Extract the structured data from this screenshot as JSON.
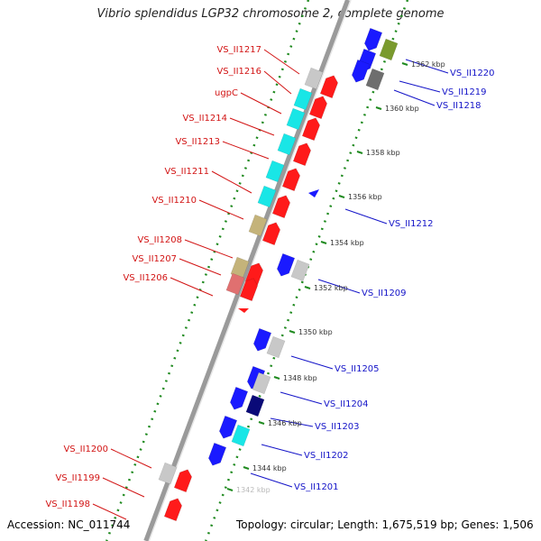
{
  "title": "Vibrio splendidus LGP32 chromosome 2, complete genome",
  "footer": {
    "accession": "Accession: NC_011744",
    "topology": "Topology: circular; Length: 1,675,519 bp; Genes: 1,506"
  },
  "colors": {
    "forward": "#ff1a1a",
    "reverse": "#1a1aff",
    "cyan": "#19e6e6",
    "gray": "#c8c8c8",
    "darkgray": "#6e6e6e",
    "olive": "#7a9a2e",
    "tan": "#c4b37a",
    "navy": "#0a0a78",
    "pink": "#e07070",
    "backbone": "#9a9a9a",
    "dots": "#1f8a1f",
    "label_red": "#d21414",
    "label_blue": "#1414c8"
  },
  "scale_ticks": [
    {
      "label": "1362 kbp"
    },
    {
      "label": "1360 kbp"
    },
    {
      "label": "1358 kbp"
    },
    {
      "label": "1356 kbp"
    },
    {
      "label": "1354 kbp"
    },
    {
      "label": "1352 kbp"
    },
    {
      "label": "1350 kbp"
    },
    {
      "label": "1348 kbp"
    },
    {
      "label": "1346 kbp"
    },
    {
      "label": "1344 kbp"
    },
    {
      "label": "1342 kbp"
    }
  ],
  "left_labels": [
    "VS_II1217",
    "VS_II1216",
    "ugpC",
    "VS_II1214",
    "VS_II1213",
    "VS_II1211",
    "VS_II1210",
    "VS_II1208",
    "VS_II1207",
    "VS_II1206",
    "VS_II1200",
    "VS_II1199",
    "VS_II1198"
  ],
  "right_labels": [
    "VS_II1220",
    "VS_II1219",
    "VS_II1218",
    "VS_II1212",
    "VS_II1209",
    "VS_II1205",
    "VS_II1204",
    "VS_II1203",
    "VS_II1202",
    "VS_II1201"
  ]
}
